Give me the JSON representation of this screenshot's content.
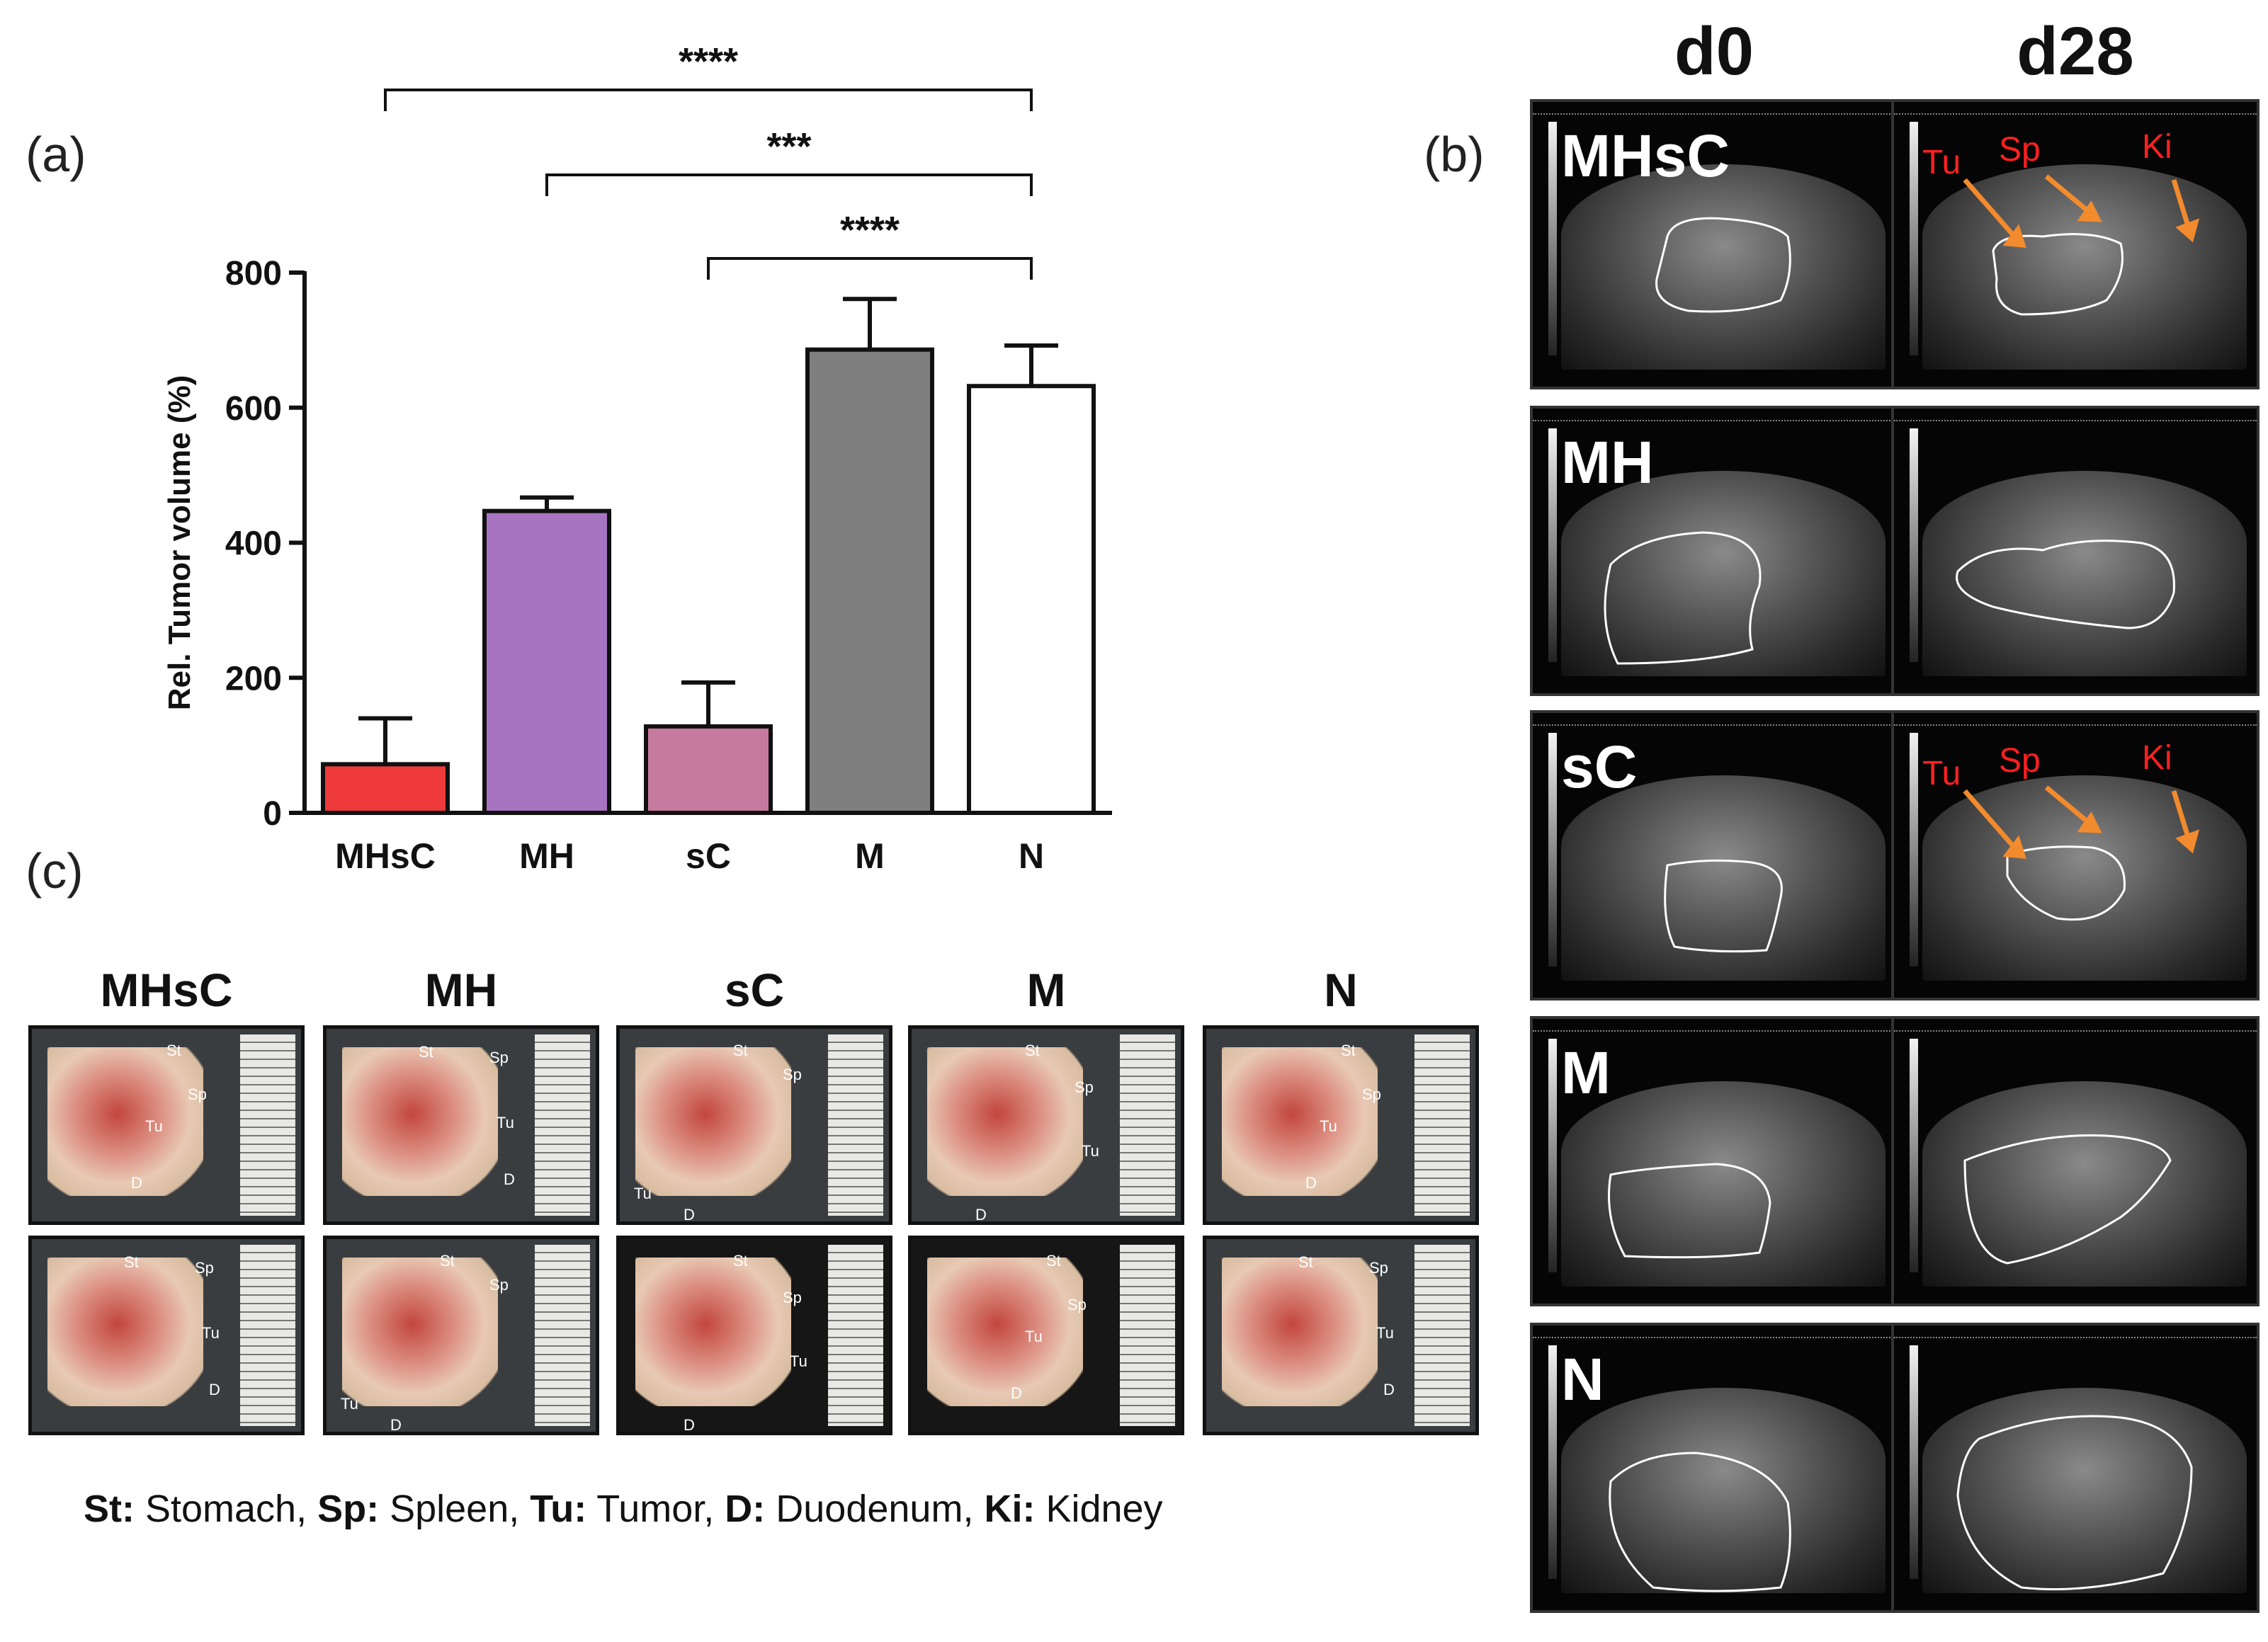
{
  "panels": {
    "a": "(a)",
    "b": "(b)",
    "c": "(c)"
  },
  "chart_data": {
    "type": "bar",
    "categories": [
      "MHsC",
      "MH",
      "sC",
      "M",
      "N"
    ],
    "values": [
      72,
      447,
      128,
      686,
      632
    ],
    "errors": [
      68,
      20,
      65,
      75,
      60
    ],
    "colors": [
      "#ee3a3a",
      "#a674c0",
      "#c77aa0",
      "#7f7f7f",
      "#ffffff"
    ],
    "ylabel": "Rel. Tumor volume (%)",
    "ylim": [
      0,
      800
    ],
    "yticks": [
      "0",
      "200",
      "400",
      "600",
      "800"
    ],
    "significance": [
      {
        "from": "MHsC",
        "to": "N",
        "label": "****"
      },
      {
        "from": "MH",
        "to": "N",
        "label": "***"
      },
      {
        "from": "sC",
        "to": "N",
        "label": "****"
      }
    ]
  },
  "ultrasound": {
    "columns": [
      "d0",
      "d28"
    ],
    "rows": [
      "MHsC",
      "MH",
      "sC",
      "M",
      "N"
    ],
    "annotations": {
      "tu": "Tu",
      "sp": "Sp",
      "ki": "Ki"
    }
  },
  "specimens": {
    "groups": [
      "MHsC",
      "MH",
      "sC",
      "M",
      "N"
    ],
    "labels": {
      "st": "St",
      "sp": "Sp",
      "tu": "Tu",
      "d": "D"
    }
  },
  "legend": {
    "items": [
      {
        "abbr": "St:",
        "name": " Stomach, "
      },
      {
        "abbr": "Sp:",
        "name": " Spleen, "
      },
      {
        "abbr": "Tu:",
        "name": " Tumor, "
      },
      {
        "abbr": "D:",
        "name": " Duodenum, "
      },
      {
        "abbr": "Ki:",
        "name": " Kidney"
      }
    ]
  }
}
